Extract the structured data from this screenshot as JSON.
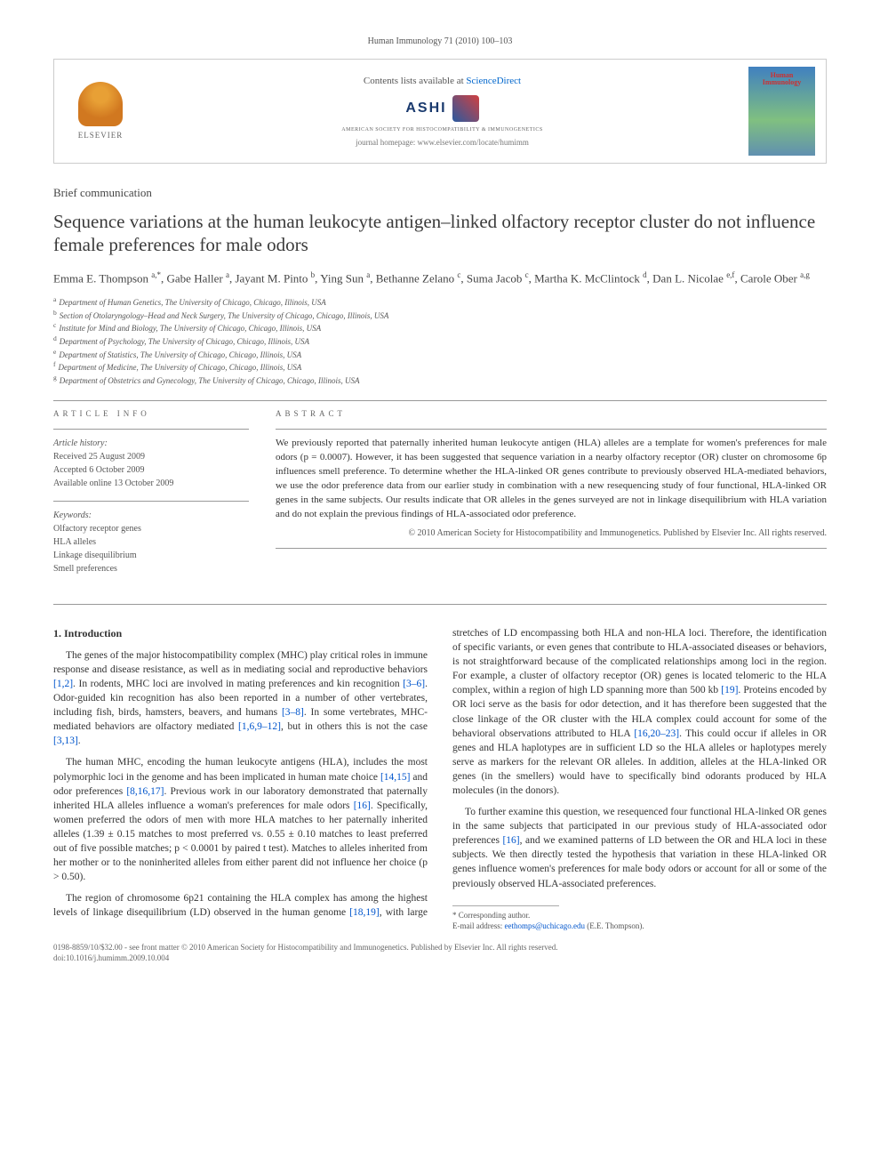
{
  "header": {
    "citation": "Human Immunology 71 (2010) 100–103"
  },
  "banner": {
    "publisher": "ELSEVIER",
    "contents_prefix": "Contents lists available at ",
    "contents_link": "ScienceDirect",
    "society": "ASHI",
    "society_full": "AMERICAN SOCIETY FOR HISTOCOMPATIBILITY & IMMUNOGENETICS",
    "homepage": "journal homepage: www.elsevier.com/locate/humimm",
    "journal_cover_title_1": "Human",
    "journal_cover_title_2": "Immunology"
  },
  "article": {
    "type": "Brief communication",
    "title": "Sequence variations at the human leukocyte antigen–linked olfactory receptor cluster do not influence female preferences for male odors",
    "authors_html": "Emma E. Thompson <sup>a,*</sup>, Gabe Haller <sup>a</sup>, Jayant M. Pinto <sup>b</sup>, Ying Sun <sup>a</sup>, Bethanne Zelano <sup>c</sup>, Suma Jacob <sup>c</sup>, Martha K. McClintock <sup>d</sup>, Dan L. Nicolae <sup>e,f</sup>, Carole Ober <sup>a,g</sup>"
  },
  "affiliations": {
    "a": "Department of Human Genetics, The University of Chicago, Chicago, Illinois, USA",
    "b": "Section of Otolaryngology–Head and Neck Surgery, The University of Chicago, Chicago, Illinois, USA",
    "c": "Institute for Mind and Biology, The University of Chicago, Chicago, Illinois, USA",
    "d": "Department of Psychology, The University of Chicago, Chicago, Illinois, USA",
    "e": "Department of Statistics, The University of Chicago, Chicago, Illinois, USA",
    "f": "Department of Medicine, The University of Chicago, Chicago, Illinois, USA",
    "g": "Department of Obstetrics and Gynecology, The University of Chicago, Chicago, Illinois, USA"
  },
  "info": {
    "label": "ARTICLE INFO",
    "history_label": "Article history:",
    "received": "Received 25 August 2009",
    "accepted": "Accepted 6 October 2009",
    "online": "Available online 13 October 2009",
    "keywords_label": "Keywords:",
    "keywords": [
      "Olfactory receptor genes",
      "HLA alleles",
      "Linkage disequilibrium",
      "Smell preferences"
    ]
  },
  "abstract": {
    "label": "ABSTRACT",
    "text": "We previously reported that paternally inherited human leukocyte antigen (HLA) alleles are a template for women's preferences for male odors (p = 0.0007). However, it has been suggested that sequence variation in a nearby olfactory receptor (OR) cluster on chromosome 6p influences smell preference. To determine whether the HLA-linked OR genes contribute to previously observed HLA-mediated behaviors, we use the odor preference data from our earlier study in combination with a new resequencing study of four functional, HLA-linked OR genes in the same subjects. Our results indicate that OR alleles in the genes surveyed are not in linkage disequilibrium with HLA variation and do not explain the previous findings of HLA-associated odor preference.",
    "copyright": "© 2010 American Society for Histocompatibility and Immunogenetics. Published by Elsevier Inc. All rights reserved."
  },
  "body": {
    "h1": "1. Introduction",
    "p1a": "The genes of the major histocompatibility complex (MHC) play critical roles in immune response and disease resistance, as well as in mediating social and reproductive behaviors ",
    "r1": "[1,2]",
    "p1b": ". In rodents, MHC loci are involved in mating preferences and kin recognition ",
    "r2": "[3–6]",
    "p1c": ". Odor-guided kin recognition has also been reported in a number of other vertebrates, including fish, birds, hamsters, beavers, and humans ",
    "r3": "[3–8]",
    "p1d": ". In some vertebrates, MHC-mediated behaviors are olfactory mediated ",
    "r4": "[1,6,9–12]",
    "p1e": ", but in others this is not the case ",
    "r5": "[3,13]",
    "p1f": ".",
    "p2a": "The human MHC, encoding the human leukocyte antigens (HLA), includes the most polymorphic loci in the genome and has been implicated in human mate choice ",
    "r6": "[14,15]",
    "p2b": " and odor preferences ",
    "r7": "[8,16,17]",
    "p2c": ". Previous work in our laboratory demonstrated that paternally inherited HLA alleles influence a woman's preferences for male odors ",
    "r8": "[16]",
    "p2d": ". Specifically, women preferred the odors of men with more HLA matches to her paternally inherited alleles (1.39 ± 0.15 matches to most preferred vs. 0.55 ± 0.10 matches to least preferred out of five possible matches; p < 0.0001 by paired t test). Matches to alleles inherited from her mother or to the noninherited alleles from either parent did not influence her choice (p > 0.50).",
    "p3a": "The region of chromosome 6p21 containing the HLA complex has among the highest levels of linkage disequilibrium (LD) observed in the human genome ",
    "r9": "[18,19]",
    "p3b": ", with large stretches of LD encompassing both HLA and non-HLA loci. Therefore, the identification of specific variants, or even genes that contribute to HLA-associated diseases or behaviors, is not straightforward because of the complicated relationships among loci in the region. For example, a cluster of olfactory receptor (OR) genes is located telomeric to the HLA complex, within a region of high LD spanning more than 500 kb ",
    "r10": "[19]",
    "p3c": ". Proteins encoded by OR loci serve as the basis for odor detection, and it has therefore been suggested that the close linkage of the OR cluster with the HLA complex could account for some of the behavioral observations attributed to HLA ",
    "r11": "[16,20–23]",
    "p3d": ". This could occur if alleles in OR genes and HLA haplotypes are in sufficient LD so the HLA alleles or haplotypes merely serve as markers for the relevant OR alleles. In addition, alleles at the HLA-linked OR genes (in the smellers) would have to specifically bind odorants produced by HLA molecules (in the donors).",
    "p4a": "To further examine this question, we resequenced four functional HLA-linked OR genes in the same subjects that participated in our previous study of HLA-associated odor preferences ",
    "r12": "[16]",
    "p4b": ", and we examined patterns of LD between the OR and HLA loci in these subjects. We then directly tested the hypothesis that variation in these HLA-linked OR genes influence women's preferences for male body odors or account for all or some of the previously observed HLA-associated preferences."
  },
  "corr": {
    "label": "* Corresponding author.",
    "email_label": "E-mail address: ",
    "email": "eethomps@uchicago.edu",
    "email_suffix": " (E.E. Thompson)."
  },
  "footer": {
    "line1": "0198-8859/10/$32.00 - see front matter © 2010 American Society for Histocompatibility and Immunogenetics. Published by Elsevier Inc. All rights reserved.",
    "line2": "doi:10.1016/j.humimm.2009.10.004"
  },
  "colors": {
    "link": "#0055cc",
    "text": "#333333",
    "rule": "#999999"
  }
}
